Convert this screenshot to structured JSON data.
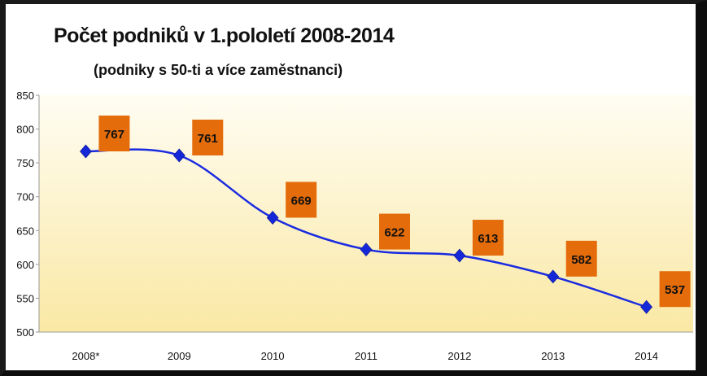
{
  "chart_data": {
    "type": "line",
    "title": "Počet podniků v 1.pololetí 2008-2014",
    "subtitle": "(podniky s 50-ti a více zaměstnanci)",
    "categories": [
      "2008*",
      "2009",
      "2010",
      "2011",
      "2012",
      "2013",
      "2014"
    ],
    "series": [
      {
        "values": [
          767,
          761,
          669,
          622,
          613,
          582,
          537
        ]
      }
    ],
    "ylim": [
      500,
      850
    ],
    "yticks": [
      500,
      550,
      600,
      650,
      700,
      750,
      800,
      850
    ],
    "grid": false,
    "legend": "none",
    "colors": {
      "line": "#1a2be0",
      "marker": "#1428d8",
      "label_box": "#e46c0a",
      "plot_bg_top": "#fffdf3",
      "plot_bg_bottom": "#fae8a4"
    }
  }
}
